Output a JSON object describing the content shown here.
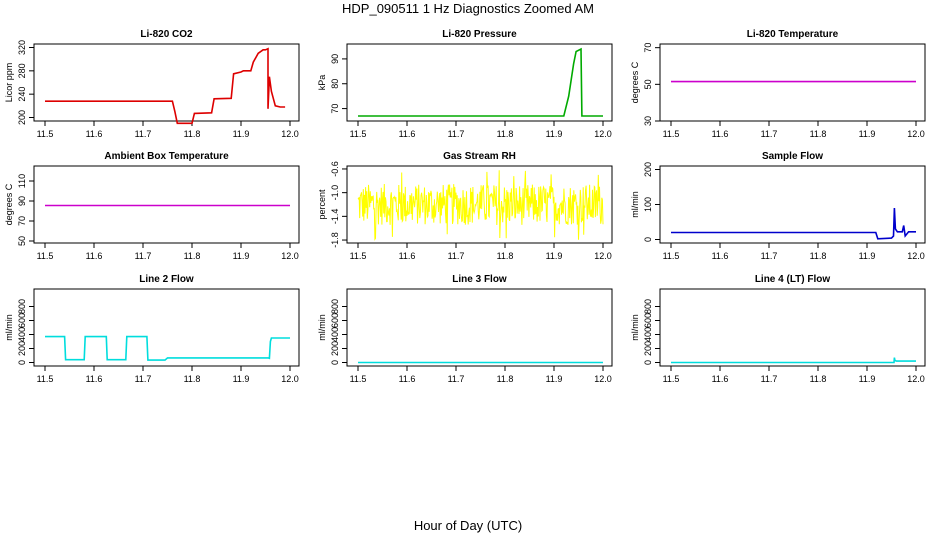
{
  "page": {
    "title": "HDP_090511  1 Hz Diagnostics Zoomed AM",
    "x_caption": "Hour of Day (UTC)"
  },
  "chart_data": [
    {
      "type": "line",
      "title": "Li-820 CO2",
      "ylabel": "Licor ppm",
      "xlim": [
        11.5,
        12.0
      ],
      "ylim": [
        194,
        326
      ],
      "x_ticks": [
        "11.5",
        "11.6",
        "11.7",
        "11.8",
        "11.9",
        "12.0"
      ],
      "y_ticks": [
        200,
        240,
        280,
        320
      ],
      "color": "#dd0000",
      "series": [
        {
          "x": [
            11.5,
            11.76,
            11.765,
            11.77,
            11.8,
            11.805,
            11.84,
            11.845,
            11.88,
            11.885,
            11.9,
            11.905,
            11.92,
            11.925,
            11.935,
            11.945,
            11.95,
            11.955,
            11.955,
            11.958,
            11.962,
            11.97,
            11.98,
            11.99
          ],
          "y": [
            228,
            228,
            210,
            190,
            190,
            207,
            208,
            232,
            233,
            275,
            278,
            280,
            280,
            295,
            310,
            316,
            316,
            318,
            215,
            270,
            245,
            220,
            218,
            218
          ]
        }
      ]
    },
    {
      "type": "line",
      "title": "Li-820 Pressure",
      "ylabel": "kPa",
      "xlim": [
        11.5,
        12.0
      ],
      "ylim": [
        65,
        96
      ],
      "x_ticks": [
        "11.5",
        "11.6",
        "11.7",
        "11.8",
        "11.9",
        "12.0"
      ],
      "y_ticks": [
        70,
        80,
        90
      ],
      "color": "#00aa00",
      "series": [
        {
          "x": [
            11.5,
            11.92,
            11.93,
            11.94,
            11.945,
            11.955,
            11.957,
            11.962,
            12.0
          ],
          "y": [
            67,
            67,
            75,
            88,
            93,
            94,
            67,
            67,
            67
          ]
        }
      ]
    },
    {
      "type": "line",
      "title": "Li-820 Temperature",
      "ylabel": "degrees C",
      "xlim": [
        11.5,
        12.0
      ],
      "ylim": [
        30,
        72
      ],
      "x_ticks": [
        "11.5",
        "11.6",
        "11.7",
        "11.8",
        "11.9",
        "12.0"
      ],
      "y_ticks": [
        30,
        50,
        70
      ],
      "color": "#cc00cc",
      "series": [
        {
          "x": [
            11.5,
            12.0
          ],
          "y": [
            51.5,
            51.5
          ]
        }
      ]
    },
    {
      "type": "line",
      "title": "Ambient Box Temperature",
      "ylabel": "degrees C",
      "xlim": [
        11.5,
        12.0
      ],
      "ylim": [
        48,
        125
      ],
      "x_ticks": [
        "11.5",
        "11.6",
        "11.7",
        "11.8",
        "11.9",
        "12.0"
      ],
      "y_ticks": [
        50,
        70,
        90,
        110
      ],
      "color": "#cc00cc",
      "series": [
        {
          "x": [
            11.5,
            12.0
          ],
          "y": [
            85.5,
            85.5
          ]
        }
      ]
    },
    {
      "type": "line",
      "title": "Gas Stream RH",
      "ylabel": "percent",
      "xlim": [
        11.5,
        12.0
      ],
      "ylim": [
        -1.85,
        -0.55
      ],
      "x_ticks": [
        "11.5",
        "11.6",
        "11.7",
        "11.8",
        "11.9",
        "12.0"
      ],
      "y_ticks": [
        "-1.8",
        "-1.4",
        "-1.0",
        "-0.6"
      ],
      "y_tick_values": [
        -1.8,
        -1.4,
        -1.0,
        -0.6
      ],
      "color": "#ffff00",
      "noise": {
        "center": -1.2,
        "band_min": -1.55,
        "band_max": -0.85,
        "extreme_min": -1.8,
        "extreme_max": -0.62
      }
    },
    {
      "type": "line",
      "title": "Sample Flow",
      "ylabel": "ml/min",
      "xlim": [
        11.5,
        12.0
      ],
      "ylim": [
        -10,
        210
      ],
      "x_ticks": [
        "11.5",
        "11.6",
        "11.7",
        "11.8",
        "11.9",
        "12.0"
      ],
      "y_ticks": [
        0,
        100,
        200
      ],
      "color": "#0000cc",
      "series": [
        {
          "x": [
            11.5,
            11.918,
            11.922,
            11.95,
            11.954,
            11.956,
            11.958,
            11.962,
            11.972,
            11.975,
            11.978,
            11.985,
            12.0
          ],
          "y": [
            20,
            20,
            2,
            4,
            10,
            90,
            30,
            22,
            22,
            40,
            10,
            22,
            22
          ]
        }
      ]
    },
    {
      "type": "line",
      "title": "Line 2 Flow",
      "ylabel": "ml/min",
      "xlim": [
        11.5,
        12.0
      ],
      "ylim": [
        -50,
        1050
      ],
      "x_ticks": [
        "11.5",
        "11.6",
        "11.7",
        "11.8",
        "11.9",
        "12.0"
      ],
      "y_ticks": [
        0,
        200,
        400,
        600,
        800
      ],
      "color": "#00dddd",
      "series": [
        {
          "x": [
            11.5,
            11.54,
            11.542,
            11.58,
            11.582,
            11.625,
            11.627,
            11.665,
            11.667,
            11.708,
            11.71,
            11.745,
            11.75,
            11.955,
            11.958,
            11.96,
            11.962,
            12.0
          ],
          "y": [
            370,
            370,
            40,
            40,
            370,
            370,
            40,
            40,
            370,
            370,
            35,
            35,
            65,
            65,
            60,
            300,
            350,
            350
          ]
        }
      ]
    },
    {
      "type": "line",
      "title": "Line 3 Flow",
      "ylabel": "ml/min",
      "xlim": [
        11.5,
        12.0
      ],
      "ylim": [
        -50,
        1050
      ],
      "x_ticks": [
        "11.5",
        "11.6",
        "11.7",
        "11.8",
        "11.9",
        "12.0"
      ],
      "y_ticks": [
        0,
        200,
        400,
        600,
        800
      ],
      "color": "#00dddd",
      "series": [
        {
          "x": [
            11.5,
            12.0
          ],
          "y": [
            0,
            0
          ]
        }
      ]
    },
    {
      "type": "line",
      "title": "Line 4 (LT) Flow",
      "ylabel": "ml/min",
      "xlim": [
        11.5,
        12.0
      ],
      "ylim": [
        -50,
        1050
      ],
      "x_ticks": [
        "11.5",
        "11.6",
        "11.7",
        "11.8",
        "11.9",
        "12.0"
      ],
      "y_ticks": [
        0,
        200,
        400,
        600,
        800
      ],
      "color": "#00dddd",
      "series": [
        {
          "x": [
            11.5,
            11.955,
            11.956,
            11.957,
            11.96,
            12.0
          ],
          "y": [
            0,
            0,
            70,
            30,
            20,
            20
          ]
        }
      ]
    }
  ]
}
